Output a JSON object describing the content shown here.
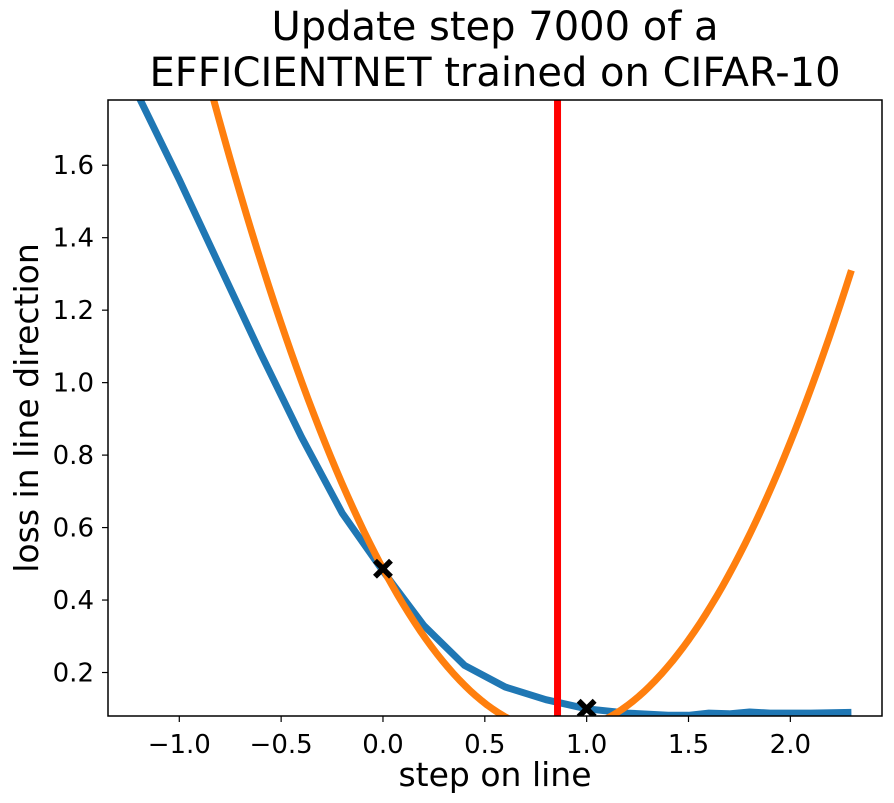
{
  "chart_data": {
    "type": "line",
    "title_lines": [
      "Update step 7000 of a",
      "EFFICIENTNET trained on CIFAR-10"
    ],
    "xlabel": "step on line",
    "ylabel": "loss in line direction",
    "xlim": [
      -1.35,
      2.45
    ],
    "ylim": [
      0.08,
      1.78
    ],
    "xticks": [
      -1.0,
      -0.5,
      0.0,
      0.5,
      1.0,
      1.5,
      2.0
    ],
    "xtick_labels": [
      "−1.0",
      "−0.5",
      "0.0",
      "0.5",
      "1.0",
      "1.5",
      "2.0"
    ],
    "yticks": [
      0.2,
      0.4,
      0.6,
      0.8,
      1.0,
      1.2,
      1.4,
      1.6
    ],
    "ytick_labels": [
      "0.2",
      "0.4",
      "0.6",
      "0.8",
      "1.0",
      "1.2",
      "1.4",
      "1.6"
    ],
    "series": [
      {
        "color": "#1f77b4",
        "x": [
          -1.2,
          -1.0,
          -0.8,
          -0.6,
          -0.4,
          -0.2,
          0.0,
          0.2,
          0.4,
          0.6,
          0.8,
          1.0,
          1.2,
          1.4,
          1.5,
          1.6,
          1.7,
          1.8,
          1.9,
          2.0,
          2.1,
          2.2,
          2.3
        ],
        "y": [
          1.79,
          1.56,
          1.32,
          1.08,
          0.85,
          0.64,
          0.48,
          0.33,
          0.22,
          0.16,
          0.125,
          0.1,
          0.088,
          0.082,
          0.082,
          0.088,
          0.086,
          0.091,
          0.088,
          0.088,
          0.088,
          0.089,
          0.09
        ]
      },
      {
        "color": "#ff7f0e",
        "function": "quadratic",
        "coefficients": {
          "a": 0.6115,
          "b": -1.0484,
          "c": 0.4865
        },
        "x_range": [
          -1.0,
          2.3
        ]
      }
    ],
    "markers": [
      {
        "x": 0.0,
        "y": 0.4865,
        "symbol": "X",
        "color": "#000000"
      },
      {
        "x": 1.0,
        "y": 0.1,
        "symbol": "X",
        "color": "#000000"
      }
    ],
    "vlines": [
      {
        "x": 0.857,
        "color": "#ff0000"
      }
    ],
    "grid": false
  }
}
